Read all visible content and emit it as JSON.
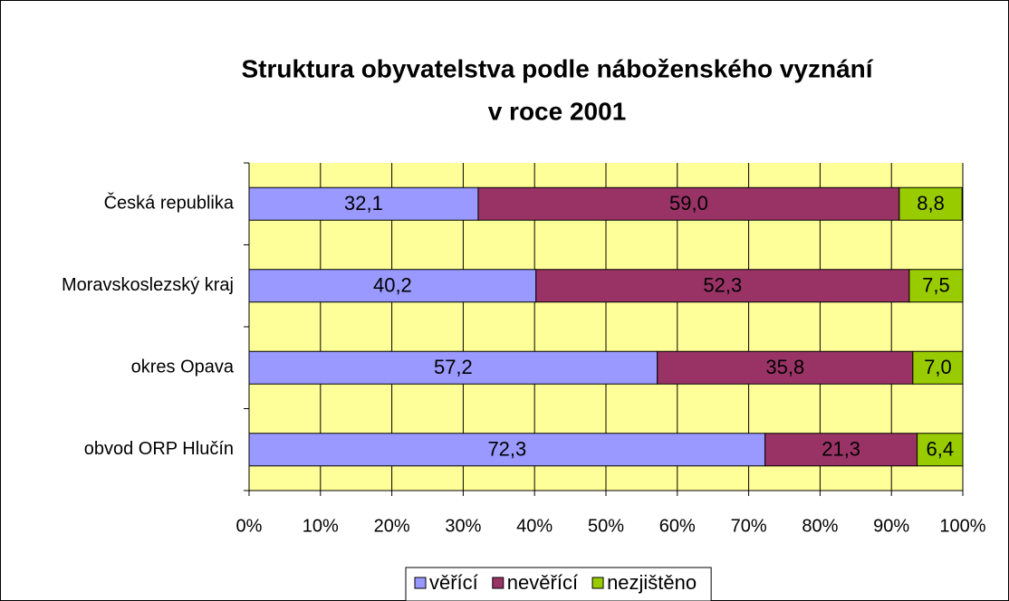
{
  "chart_data": {
    "type": "stacked_bar_horizontal",
    "title": [
      "Struktura obyvatelstva podle náboženského vyznání",
      "v roce 2001"
    ],
    "categories": [
      "Česká republika",
      "Moravskoslezský kraj",
      "okres Opava",
      "obvod ORP Hlučín"
    ],
    "series": [
      {
        "name": "věřící",
        "color": "#9999ff",
        "values": [
          32.1,
          40.2,
          57.2,
          72.3
        ],
        "value_labels": [
          "32,1",
          "40,2",
          "57,2",
          "72,3"
        ]
      },
      {
        "name": "nevěřící",
        "color": "#993366",
        "values": [
          59.0,
          52.3,
          35.8,
          21.3
        ],
        "value_labels": [
          "59,0",
          "52,3",
          "35,8",
          "21,3"
        ]
      },
      {
        "name": "nezjištěno",
        "color": "#99cc00",
        "values": [
          8.8,
          7.5,
          7.0,
          6.4
        ],
        "value_labels": [
          "8,8",
          "7,5",
          "7,0",
          "6,4"
        ]
      }
    ],
    "xlim": [
      0,
      100
    ],
    "xticks": [
      {
        "value": 0,
        "label": "0%"
      },
      {
        "value": 10,
        "label": "10%"
      },
      {
        "value": 20,
        "label": "20%"
      },
      {
        "value": 30,
        "label": "30%"
      },
      {
        "value": 40,
        "label": "40%"
      },
      {
        "value": 50,
        "label": "50%"
      },
      {
        "value": 60,
        "label": "60%"
      },
      {
        "value": 70,
        "label": "70%"
      },
      {
        "value": 80,
        "label": "80%"
      },
      {
        "value": 90,
        "label": "90%"
      },
      {
        "value": 100,
        "label": "100%"
      }
    ],
    "grid": true,
    "plot_background": "#ffff99",
    "legend": "bottom"
  }
}
